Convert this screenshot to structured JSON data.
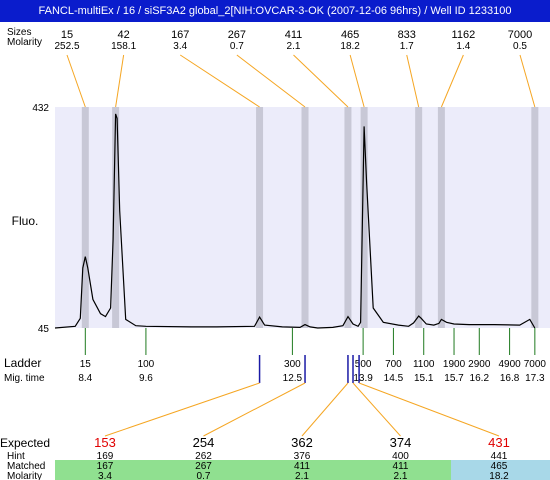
{
  "title": "FANCL-multiEx / 16 / siSF3A2 global_2[NIH:OVCAR-3-OK (2007-12-06 96hrs) / Well ID 1233100",
  "top_labels": {
    "size": "Sizes",
    "molarity": "Molarity"
  },
  "side_labels": {
    "fluo": "Fluo.",
    "ladder": "Ladder",
    "mig_time": "Mig. time",
    "expected": "Expected",
    "hint": "Hint",
    "matched": "Matched",
    "molarity": "Molarity"
  },
  "colors": {
    "plot_bg": "#ececfa",
    "peak_band": "#c8c8d6",
    "trace": "#000000",
    "leader": "#f5a623",
    "ladder_tick": "#1f7a1f",
    "sample_tick": "#1a1aa6",
    "expected_red": "#e00000",
    "matched_green": "#90e090",
    "matched_blue": "#a8d8e8",
    "title_bar": "#0a1ccc"
  },
  "chart_data": {
    "type": "line",
    "ylim": [
      45,
      432
    ],
    "yticks": [
      432,
      45
    ],
    "trace": [
      [
        7.8,
        45
      ],
      [
        8.2,
        48
      ],
      [
        8.3,
        62
      ],
      [
        8.35,
        150
      ],
      [
        8.4,
        170
      ],
      [
        8.45,
        150
      ],
      [
        8.55,
        95
      ],
      [
        8.7,
        70
      ],
      [
        8.8,
        65
      ],
      [
        8.9,
        80
      ],
      [
        8.95,
        200
      ],
      [
        9.0,
        420
      ],
      [
        9.03,
        412
      ],
      [
        9.08,
        250
      ],
      [
        9.2,
        60
      ],
      [
        9.4,
        49
      ],
      [
        9.6,
        48
      ],
      [
        10.5,
        47
      ],
      [
        11.0,
        47
      ],
      [
        11.75,
        48
      ],
      [
        11.85,
        64
      ],
      [
        11.95,
        50
      ],
      [
        12.3,
        47
      ],
      [
        12.65,
        46
      ],
      [
        12.75,
        51
      ],
      [
        12.85,
        47
      ],
      [
        13.0,
        45
      ],
      [
        13.3,
        46
      ],
      [
        13.5,
        49
      ],
      [
        13.6,
        65
      ],
      [
        13.7,
        52
      ],
      [
        13.8,
        48
      ],
      [
        13.85,
        55
      ],
      [
        13.92,
        398
      ],
      [
        13.97,
        300
      ],
      [
        14.1,
        80
      ],
      [
        14.3,
        55
      ],
      [
        14.6,
        50
      ],
      [
        14.8,
        48
      ],
      [
        14.9,
        54
      ],
      [
        15.0,
        66
      ],
      [
        15.05,
        62
      ],
      [
        15.15,
        52
      ],
      [
        15.3,
        50
      ],
      [
        15.4,
        53
      ],
      [
        15.45,
        60
      ],
      [
        15.55,
        55
      ],
      [
        15.7,
        52
      ],
      [
        16.0,
        51
      ],
      [
        16.5,
        51
      ],
      [
        17.0,
        50
      ],
      [
        17.2,
        60
      ],
      [
        17.3,
        45
      ]
    ],
    "peaks": [
      {
        "size": "15",
        "molarity": "252.5",
        "time": 8.4
      },
      {
        "size": "42",
        "molarity": "158.1",
        "time": 9.0
      },
      {
        "size": "167",
        "molarity": "3.4",
        "time": 11.85
      },
      {
        "size": "267",
        "molarity": "0.7",
        "time": 12.75
      },
      {
        "size": "411",
        "molarity": "2.1",
        "time": 13.6
      },
      {
        "size": "465",
        "molarity": "18.2",
        "time": 13.92
      },
      {
        "size": "833",
        "molarity": "1.7",
        "time": 15.0
      },
      {
        "size": "1162",
        "molarity": "1.4",
        "time": 15.45
      },
      {
        "size": "7000",
        "molarity": "0.5",
        "time": 17.3
      }
    ],
    "ladder": [
      {
        "size": "15",
        "time": 8.4
      },
      {
        "size": "100",
        "time": 9.6
      },
      {
        "size": "300",
        "time": 12.5
      },
      {
        "size": "500",
        "time": 13.9
      },
      {
        "size": "700",
        "time": 14.5
      },
      {
        "size": "1100",
        "time": 15.1
      },
      {
        "size": "1900",
        "time": 15.7
      },
      {
        "size": "2900",
        "time": 16.2
      },
      {
        "size": "4900",
        "time": 16.8
      },
      {
        "size": "7000",
        "time": 17.3
      }
    ],
    "sample_marks": [
      11.85,
      12.75,
      13.6,
      13.7,
      13.82
    ],
    "expected": [
      {
        "expected": "153",
        "highlight": true,
        "hint": "169",
        "matched": "167",
        "molarity": "3.4",
        "mark": 11.85,
        "status": "matched"
      },
      {
        "expected": "254",
        "highlight": false,
        "hint": "262",
        "matched": "267",
        "molarity": "0.7",
        "mark": 12.75,
        "status": "matched"
      },
      {
        "expected": "362",
        "highlight": false,
        "hint": "376",
        "matched": "411",
        "molarity": "2.1",
        "mark": 13.6,
        "status": "matched"
      },
      {
        "expected": "374",
        "highlight": false,
        "hint": "400",
        "matched": "411",
        "molarity": "2.1",
        "mark": 13.7,
        "status": "matched"
      },
      {
        "expected": "431",
        "highlight": true,
        "hint": "441",
        "matched": "465",
        "molarity": "18.2",
        "mark": 13.82,
        "status": "other"
      }
    ]
  }
}
